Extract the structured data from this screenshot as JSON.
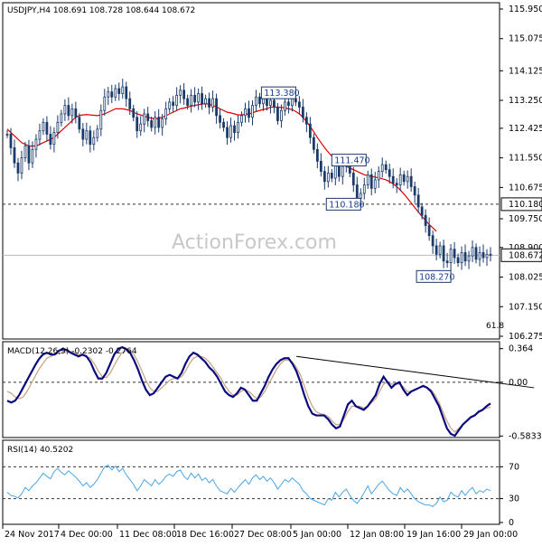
{
  "chart_data": {
    "type": "candlestick",
    "watermark": "ActionForex.com",
    "price_panel": {
      "header": "USDJPY,H4  108.691 108.728 108.644 108.672",
      "ylim": [
        106.275,
        115.95
      ],
      "y_ticks": [
        "115.950",
        "115.075",
        "114.125",
        "113.250",
        "112.425",
        "111.550",
        "110.675",
        "109.750",
        "108.900",
        "108.025",
        "107.150",
        "106.275"
      ],
      "current_price": "108.672",
      "support_level": "110.180",
      "fib_label": "61.8",
      "ma_color": "#e00000",
      "candle_color": "#1a3a6a",
      "annotations": [
        {
          "label": "113.380",
          "i": 80,
          "y": 113.38
        },
        {
          "label": "111.470",
          "i": 93,
          "y": 111.47
        },
        {
          "label": "110.180",
          "i": 98,
          "y": 110.18
        },
        {
          "label": "108.270",
          "i": 123,
          "y": 108.27
        }
      ],
      "closes": [
        112.25,
        111.85,
        111.4,
        111.1,
        111.55,
        111.9,
        111.4,
        111.8,
        112.1,
        112.35,
        112.6,
        112.25,
        111.95,
        112.3,
        112.6,
        112.85,
        113.1,
        112.8,
        113.0,
        112.75,
        112.4,
        112.1,
        112.35,
        111.95,
        112.15,
        112.4,
        112.95,
        113.35,
        113.5,
        113.35,
        113.6,
        113.45,
        113.65,
        113.3,
        113.0,
        112.75,
        112.35,
        112.55,
        112.85,
        112.65,
        112.45,
        112.75,
        112.45,
        112.7,
        113.0,
        113.2,
        113.1,
        113.4,
        113.55,
        113.3,
        113.1,
        113.4,
        113.2,
        113.45,
        113.15,
        113.3,
        113.05,
        113.3,
        112.8,
        112.6,
        112.45,
        112.15,
        112.5,
        112.3,
        112.6,
        112.8,
        113.0,
        112.75,
        113.1,
        113.35,
        113.15,
        113.3,
        113.1,
        113.25,
        113.05,
        112.65,
        112.95,
        113.2,
        113.1,
        113.3,
        113.2,
        113.05,
        112.75,
        112.55,
        112.15,
        111.8,
        111.45,
        111.15,
        110.85,
        111.1,
        110.95,
        111.35,
        111.0,
        111.3,
        111.45,
        111.1,
        110.75,
        110.35,
        110.5,
        110.75,
        111.05,
        110.65,
        110.9,
        111.15,
        111.35,
        111.2,
        111.0,
        110.8,
        110.75,
        111.05,
        110.85,
        111.0,
        110.7,
        110.45,
        110.1,
        109.85,
        109.55,
        109.25,
        108.95,
        108.7,
        108.95,
        108.5,
        108.45,
        108.85,
        108.6,
        108.45,
        108.75,
        108.5,
        108.65,
        108.9,
        108.55,
        108.75,
        108.6,
        108.7,
        108.67
      ],
      "ma": [
        112.4,
        112.3,
        112.2,
        112.1,
        112.0,
        111.95,
        111.9,
        111.9,
        111.9,
        111.95,
        112.0,
        112.05,
        112.1,
        112.15,
        112.25,
        112.35,
        112.45,
        112.55,
        112.65,
        112.75,
        112.8,
        112.82,
        112.83,
        112.82,
        112.81,
        112.8,
        112.82,
        112.85,
        112.9,
        112.95,
        113.0,
        113.0,
        113.0,
        112.98,
        112.95,
        112.9,
        112.85,
        112.82,
        112.78,
        112.75,
        112.72,
        112.7,
        112.72,
        112.75,
        112.8,
        112.85,
        112.9,
        112.95,
        113.0,
        113.02,
        113.05,
        113.08,
        113.1,
        113.12,
        113.14,
        113.15,
        113.14,
        113.1,
        113.06,
        113.0,
        112.95,
        112.9,
        112.88,
        112.85,
        112.82,
        112.82,
        112.84,
        112.85,
        112.88,
        112.92,
        112.95,
        112.98,
        113.0,
        113.05,
        113.05,
        113.05,
        113.04,
        113.03,
        113.0,
        112.98,
        112.92,
        112.85,
        112.75,
        112.62,
        112.48,
        112.32,
        112.15,
        112.0,
        111.85,
        111.72,
        111.6,
        111.5,
        111.42,
        111.35,
        111.3,
        111.25,
        111.2,
        111.15,
        111.1,
        111.05,
        111.02,
        111.0,
        110.98,
        110.96,
        110.93,
        110.9,
        110.85,
        110.78,
        110.7,
        110.6,
        110.48,
        110.35,
        110.22,
        110.08,
        109.95,
        109.82,
        109.7,
        109.58,
        109.48,
        109.38
      ]
    },
    "macd_panel": {
      "label": "MACD(12,26,9) -0.2302 -0.2764",
      "y_ticks": [
        "0.364",
        "0.00",
        "-0.5833"
      ],
      "ylim": [
        -0.58,
        0.4
      ],
      "macd_color": "#0a0a80",
      "signal_color": "#c8a080",
      "trendline": {
        "from_index": 73,
        "from_value": 0.28,
        "to_index": 133,
        "to_value": -0.06
      },
      "macd": [
        -0.2,
        -0.22,
        -0.2,
        -0.14,
        -0.06,
        0.02,
        0.1,
        0.18,
        0.25,
        0.3,
        0.32,
        0.3,
        0.3,
        0.34,
        0.36,
        0.35,
        0.32,
        0.3,
        0.28,
        0.3,
        0.28,
        0.22,
        0.12,
        0.04,
        0.04,
        0.1,
        0.2,
        0.3,
        0.36,
        0.38,
        0.36,
        0.32,
        0.24,
        0.14,
        0.02,
        -0.08,
        -0.14,
        -0.12,
        -0.06,
        0.0,
        0.06,
        0.08,
        0.06,
        0.04,
        0.1,
        0.2,
        0.28,
        0.32,
        0.3,
        0.26,
        0.22,
        0.16,
        0.12,
        0.06,
        -0.02,
        -0.1,
        -0.14,
        -0.16,
        -0.12,
        -0.06,
        -0.08,
        -0.14,
        -0.2,
        -0.2,
        -0.12,
        -0.04,
        0.06,
        0.14,
        0.2,
        0.24,
        0.26,
        0.26,
        0.2,
        0.12,
        0.0,
        -0.14,
        -0.26,
        -0.34,
        -0.36,
        -0.36,
        -0.36,
        -0.4,
        -0.46,
        -0.5,
        -0.48,
        -0.36,
        -0.24,
        -0.2,
        -0.26,
        -0.28,
        -0.3,
        -0.26,
        -0.2,
        -0.14,
        -0.02,
        0.06,
        0.0,
        -0.06,
        -0.02,
        0.0,
        -0.08,
        -0.14,
        -0.1,
        -0.08,
        -0.06,
        -0.04,
        -0.06,
        -0.1,
        -0.18,
        -0.26,
        -0.38,
        -0.5,
        -0.56,
        -0.58,
        -0.52,
        -0.46,
        -0.42,
        -0.38,
        -0.36,
        -0.32,
        -0.3,
        -0.26,
        -0.23
      ],
      "signal": [
        -0.1,
        -0.12,
        -0.16,
        -0.18,
        -0.16,
        -0.1,
        -0.02,
        0.06,
        0.14,
        0.2,
        0.26,
        0.28,
        0.3,
        0.31,
        0.32,
        0.33,
        0.33,
        0.32,
        0.3,
        0.29,
        0.28,
        0.26,
        0.2,
        0.12,
        0.06,
        0.05,
        0.1,
        0.18,
        0.26,
        0.32,
        0.34,
        0.34,
        0.3,
        0.22,
        0.12,
        0.02,
        -0.06,
        -0.1,
        -0.1,
        -0.06,
        -0.02,
        0.02,
        0.04,
        0.04,
        0.06,
        0.12,
        0.2,
        0.26,
        0.28,
        0.28,
        0.26,
        0.22,
        0.16,
        0.1,
        0.04,
        -0.04,
        -0.1,
        -0.14,
        -0.14,
        -0.1,
        -0.08,
        -0.1,
        -0.14,
        -0.18,
        -0.16,
        -0.1,
        -0.02,
        0.06,
        0.14,
        0.2,
        0.24,
        0.24,
        0.22,
        0.16,
        0.08,
        -0.04,
        -0.16,
        -0.26,
        -0.32,
        -0.34,
        -0.35,
        -0.37,
        -0.42,
        -0.46,
        -0.46,
        -0.4,
        -0.32,
        -0.26,
        -0.26,
        -0.26,
        -0.28,
        -0.26,
        -0.22,
        -0.18,
        -0.1,
        -0.02,
        0.0,
        -0.02,
        -0.02,
        -0.02,
        -0.05,
        -0.1,
        -0.1,
        -0.08,
        -0.06,
        -0.05,
        -0.06,
        -0.08,
        -0.14,
        -0.22,
        -0.32,
        -0.42,
        -0.5,
        -0.54,
        -0.5,
        -0.46,
        -0.42,
        -0.38,
        -0.36,
        -0.33,
        -0.3,
        -0.28,
        -0.27
      ]
    },
    "rsi_panel": {
      "label": "RSI(14) 40.5202",
      "y_ticks": [
        "70",
        "30",
        "0"
      ],
      "ylim": [
        0,
        100
      ],
      "line_color": "#4aa6e8",
      "values": [
        38,
        34,
        33,
        31,
        36,
        44,
        40,
        46,
        50,
        56,
        62,
        58,
        55,
        64,
        68,
        63,
        60,
        65,
        61,
        57,
        52,
        46,
        50,
        44,
        48,
        54,
        62,
        70,
        72,
        66,
        71,
        64,
        68,
        60,
        54,
        48,
        40,
        46,
        54,
        50,
        46,
        54,
        48,
        52,
        58,
        61,
        58,
        64,
        66,
        58,
        54,
        62,
        56,
        61,
        53,
        56,
        50,
        54,
        46,
        40,
        38,
        36,
        43,
        38,
        44,
        49,
        54,
        48,
        56,
        60,
        54,
        58,
        52,
        56,
        50,
        42,
        48,
        54,
        51,
        56,
        52,
        48,
        40,
        36,
        30,
        28,
        26,
        24,
        22,
        30,
        28,
        38,
        32,
        38,
        42,
        34,
        28,
        24,
        30,
        38,
        46,
        36,
        42,
        48,
        52,
        46,
        40,
        36,
        34,
        44,
        38,
        42,
        36,
        30,
        26,
        24,
        22,
        22,
        20,
        24,
        32,
        26,
        28,
        38,
        34,
        32,
        40,
        34,
        40,
        44,
        36,
        40,
        38,
        42,
        40
      ],
      "levels": [
        70,
        30
      ]
    },
    "x_labels": [
      "24 Nov 2017",
      "4 Dec 00:00",
      "11 Dec 08:00",
      "18 Dec 16:00",
      "27 Dec 08:00",
      "5 Jan 00:00",
      "12 Jan 08:00",
      "19 Jan 16:00",
      "29 Jan 00:00"
    ]
  }
}
